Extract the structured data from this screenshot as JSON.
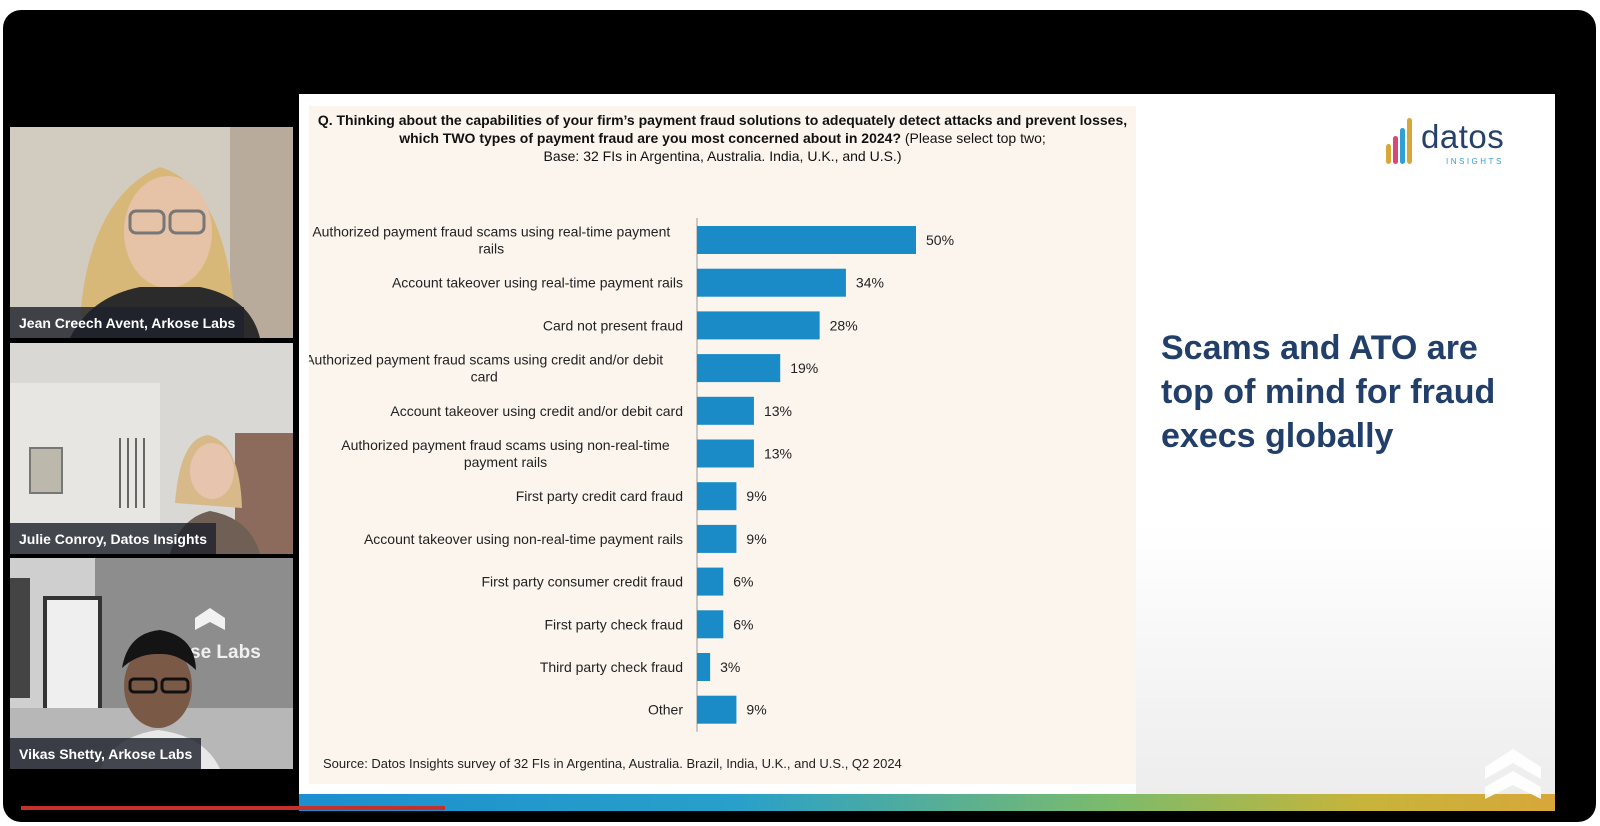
{
  "participants": [
    {
      "name": "Jean Creech Avent, Arkose Labs"
    },
    {
      "name": "Julie Conroy, Datos Insights"
    },
    {
      "name": "Vikas Shetty, Arkose Labs"
    }
  ],
  "slide": {
    "question_bold": "Q. Thinking about the capabilities of your firm’s payment fraud solutions to adequately detect attacks and prevent losses, which TWO types of payment fraud are you most concerned about in 2024?",
    "question_note": "(Please select top two;",
    "question_base": "Base: 32 FIs in Argentina, Australia. India, U.K., and U.S.)",
    "source": "Source: Datos Insights survey of 32 FIs in Argentina, Australia. Brazil, India, U.K., and U.S., Q2 2024",
    "headline": "Scams and ATO are top of mind for fraud execs globally",
    "logo_word": "datos",
    "logo_sub": "INSIGHTS",
    "colors": {
      "bar": "#1a8bc6",
      "headline": "#223f6a",
      "panel": "#fbf5ee"
    }
  },
  "chart_data": {
    "type": "bar",
    "orientation": "horizontal",
    "categories": [
      "Authorized payment fraud scams using real-time payment rails",
      "Account takeover using real-time payment rails",
      "Card not present fraud",
      "Authorized payment fraud scams using credit and/or debit card",
      "Account takeover using credit and/or debit card",
      "Authorized payment fraud scams using non-real-time payment rails",
      "First party credit card fraud",
      "Account takeover using non-real-time payment rails",
      "First party consumer credit fraud",
      "First party check fraud",
      "Third party check fraud",
      "Other"
    ],
    "values": [
      50,
      34,
      28,
      19,
      13,
      13,
      9,
      9,
      6,
      6,
      3,
      9
    ],
    "data_labels": [
      "50%",
      "34%",
      "28%",
      "19%",
      "13%",
      "13%",
      "9%",
      "9%",
      "6%",
      "6%",
      "3%",
      "9%"
    ],
    "xlim": [
      0,
      100
    ],
    "grid": false,
    "legend": "none"
  }
}
